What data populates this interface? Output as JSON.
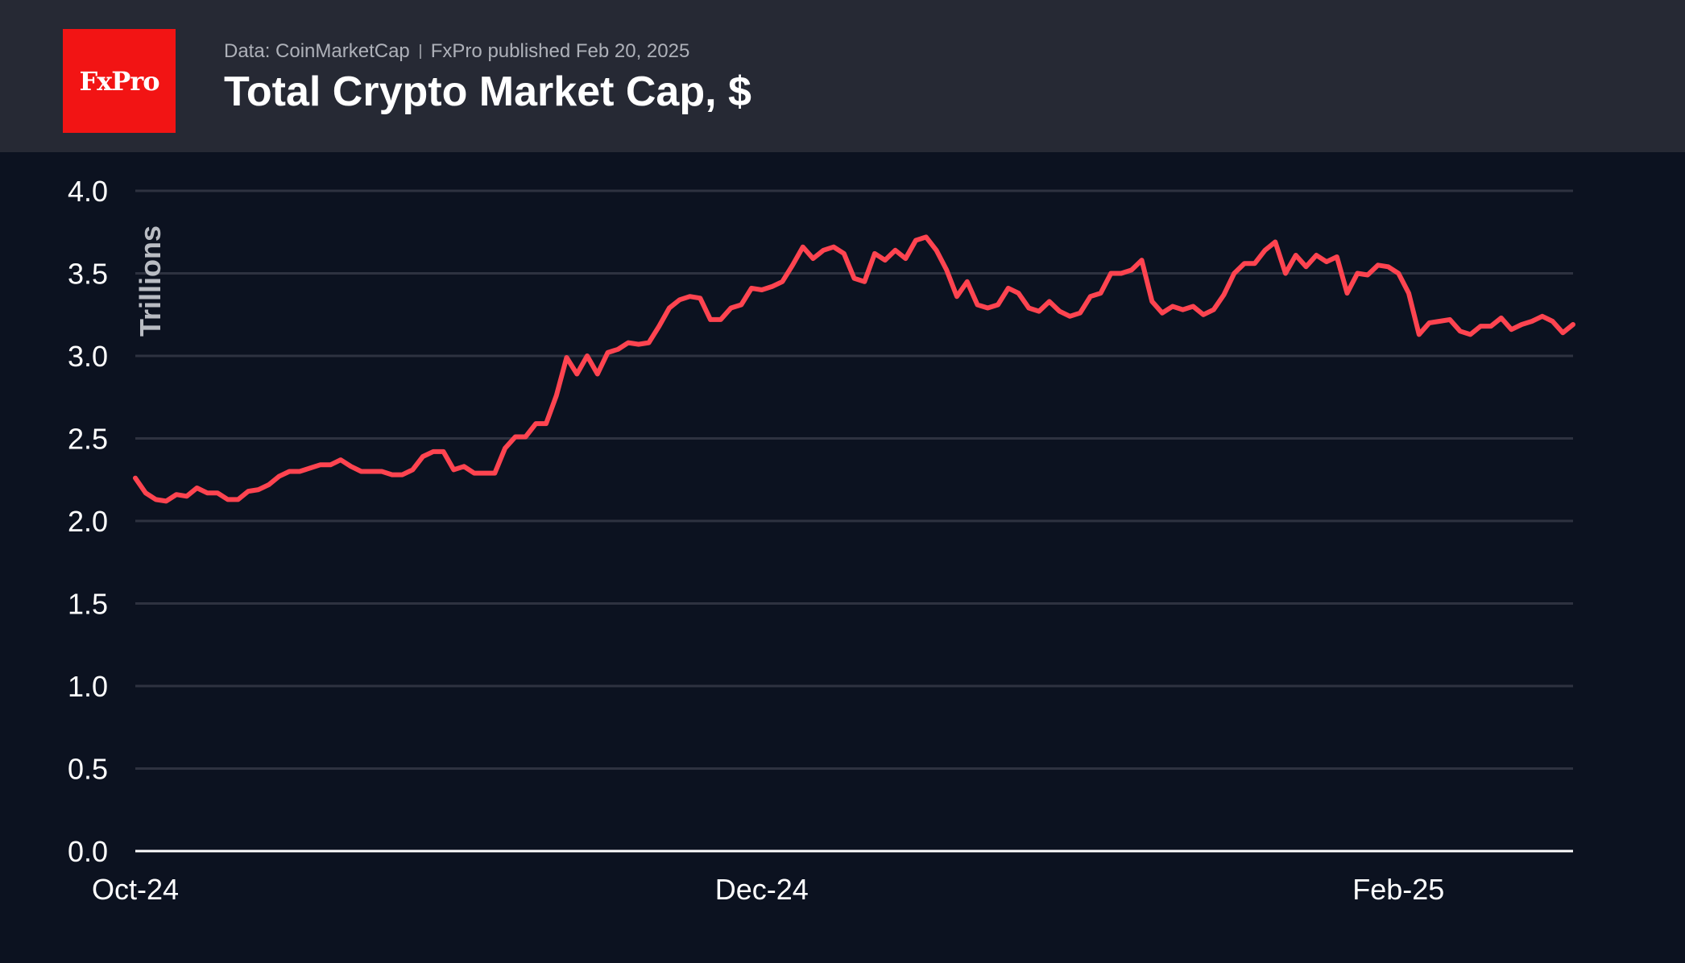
{
  "header": {
    "logo_text": "FxPro",
    "source": "Data: CoinMarketCap",
    "published": "FxPro published Feb 20, 2025",
    "title": "Total Crypto Market Cap, $"
  },
  "colors": {
    "background": "#0c1220",
    "header": "#262934",
    "logo": "#f21414",
    "line": "#ff4450",
    "grid": "#2e3240"
  },
  "chart_data": {
    "type": "line",
    "ylabel": "Trillions",
    "ylim": [
      0,
      4
    ],
    "yticks": [
      "0.0",
      "0.5",
      "1.0",
      "1.5",
      "2.0",
      "2.5",
      "3.0",
      "3.5",
      "4.0"
    ],
    "xticks": [
      {
        "label": "Oct-24",
        "date": "2024-10-01"
      },
      {
        "label": "Dec-24",
        "date": "2024-12-01"
      },
      {
        "label": "Feb-25",
        "date": "2025-02-01"
      }
    ],
    "xlim": [
      "2024-10-01",
      "2025-02-18"
    ],
    "grid": true,
    "series": [
      {
        "values": [
          [
            "2024-10-01",
            2.26
          ],
          [
            "2024-10-02",
            2.17
          ],
          [
            "2024-10-03",
            2.13
          ],
          [
            "2024-10-04",
            2.12
          ],
          [
            "2024-10-05",
            2.16
          ],
          [
            "2024-10-06",
            2.15
          ],
          [
            "2024-10-07",
            2.2
          ],
          [
            "2024-10-08",
            2.17
          ],
          [
            "2024-10-09",
            2.17
          ],
          [
            "2024-10-10",
            2.13
          ],
          [
            "2024-10-11",
            2.13
          ],
          [
            "2024-10-12",
            2.18
          ],
          [
            "2024-10-13",
            2.19
          ],
          [
            "2024-10-14",
            2.22
          ],
          [
            "2024-10-15",
            2.27
          ],
          [
            "2024-10-16",
            2.3
          ],
          [
            "2024-10-17",
            2.3
          ],
          [
            "2024-10-18",
            2.32
          ],
          [
            "2024-10-19",
            2.34
          ],
          [
            "2024-10-20",
            2.34
          ],
          [
            "2024-10-21",
            2.37
          ],
          [
            "2024-10-22",
            2.33
          ],
          [
            "2024-10-23",
            2.3
          ],
          [
            "2024-10-24",
            2.3
          ],
          [
            "2024-10-25",
            2.3
          ],
          [
            "2024-10-26",
            2.28
          ],
          [
            "2024-10-27",
            2.28
          ],
          [
            "2024-10-28",
            2.31
          ],
          [
            "2024-10-29",
            2.39
          ],
          [
            "2024-10-30",
            2.42
          ],
          [
            "2024-10-31",
            2.42
          ],
          [
            "2024-11-01",
            2.31
          ],
          [
            "2024-11-02",
            2.33
          ],
          [
            "2024-11-03",
            2.29
          ],
          [
            "2024-11-04",
            2.29
          ],
          [
            "2024-11-05",
            2.29
          ],
          [
            "2024-11-06",
            2.44
          ],
          [
            "2024-11-07",
            2.51
          ],
          [
            "2024-11-08",
            2.51
          ],
          [
            "2024-11-09",
            2.59
          ],
          [
            "2024-11-10",
            2.59
          ],
          [
            "2024-11-11",
            2.76
          ],
          [
            "2024-11-12",
            2.99
          ],
          [
            "2024-11-13",
            2.89
          ],
          [
            "2024-11-14",
            3.0
          ],
          [
            "2024-11-15",
            2.89
          ],
          [
            "2024-11-16",
            3.02
          ],
          [
            "2024-11-17",
            3.04
          ],
          [
            "2024-11-18",
            3.08
          ],
          [
            "2024-11-19",
            3.07
          ],
          [
            "2024-11-20",
            3.08
          ],
          [
            "2024-11-21",
            3.18
          ],
          [
            "2024-11-22",
            3.29
          ],
          [
            "2024-11-23",
            3.34
          ],
          [
            "2024-11-24",
            3.36
          ],
          [
            "2024-11-25",
            3.35
          ],
          [
            "2024-11-26",
            3.22
          ],
          [
            "2024-11-27",
            3.22
          ],
          [
            "2024-11-28",
            3.29
          ],
          [
            "2024-11-29",
            3.31
          ],
          [
            "2024-11-30",
            3.41
          ],
          [
            "2024-12-01",
            3.4
          ],
          [
            "2024-12-02",
            3.42
          ],
          [
            "2024-12-03",
            3.45
          ],
          [
            "2024-12-04",
            3.55
          ],
          [
            "2024-12-05",
            3.66
          ],
          [
            "2024-12-06",
            3.59
          ],
          [
            "2024-12-07",
            3.64
          ],
          [
            "2024-12-08",
            3.66
          ],
          [
            "2024-12-09",
            3.62
          ],
          [
            "2024-12-10",
            3.47
          ],
          [
            "2024-12-11",
            3.45
          ],
          [
            "2024-12-12",
            3.62
          ],
          [
            "2024-12-13",
            3.58
          ],
          [
            "2024-12-14",
            3.64
          ],
          [
            "2024-12-15",
            3.59
          ],
          [
            "2024-12-16",
            3.7
          ],
          [
            "2024-12-17",
            3.72
          ],
          [
            "2024-12-18",
            3.64
          ],
          [
            "2024-12-19",
            3.52
          ],
          [
            "2024-12-20",
            3.36
          ],
          [
            "2024-12-21",
            3.45
          ],
          [
            "2024-12-22",
            3.31
          ],
          [
            "2024-12-23",
            3.29
          ],
          [
            "2024-12-24",
            3.31
          ],
          [
            "2024-12-25",
            3.41
          ],
          [
            "2024-12-26",
            3.38
          ],
          [
            "2024-12-27",
            3.29
          ],
          [
            "2024-12-28",
            3.27
          ],
          [
            "2024-12-29",
            3.33
          ],
          [
            "2024-12-30",
            3.27
          ],
          [
            "2024-12-31",
            3.24
          ],
          [
            "2025-01-01",
            3.26
          ],
          [
            "2025-01-02",
            3.36
          ],
          [
            "2025-01-03",
            3.38
          ],
          [
            "2025-01-04",
            3.5
          ],
          [
            "2025-01-05",
            3.5
          ],
          [
            "2025-01-06",
            3.52
          ],
          [
            "2025-01-07",
            3.58
          ],
          [
            "2025-01-08",
            3.33
          ],
          [
            "2025-01-09",
            3.26
          ],
          [
            "2025-01-10",
            3.3
          ],
          [
            "2025-01-11",
            3.28
          ],
          [
            "2025-01-12",
            3.3
          ],
          [
            "2025-01-13",
            3.25
          ],
          [
            "2025-01-14",
            3.28
          ],
          [
            "2025-01-15",
            3.37
          ],
          [
            "2025-01-16",
            3.5
          ],
          [
            "2025-01-17",
            3.56
          ],
          [
            "2025-01-18",
            3.56
          ],
          [
            "2025-01-19",
            3.64
          ],
          [
            "2025-01-20",
            3.69
          ],
          [
            "2025-01-21",
            3.5
          ],
          [
            "2025-01-22",
            3.61
          ],
          [
            "2025-01-23",
            3.54
          ],
          [
            "2025-01-24",
            3.61
          ],
          [
            "2025-01-25",
            3.57
          ],
          [
            "2025-01-26",
            3.6
          ],
          [
            "2025-01-27",
            3.38
          ],
          [
            "2025-01-28",
            3.5
          ],
          [
            "2025-01-29",
            3.49
          ],
          [
            "2025-01-30",
            3.55
          ],
          [
            "2025-01-31",
            3.54
          ],
          [
            "2025-02-01",
            3.5
          ],
          [
            "2025-02-02",
            3.38
          ],
          [
            "2025-02-03",
            3.13
          ],
          [
            "2025-02-04",
            3.2
          ],
          [
            "2025-02-05",
            3.21
          ],
          [
            "2025-02-06",
            3.22
          ],
          [
            "2025-02-07",
            3.15
          ],
          [
            "2025-02-08",
            3.13
          ],
          [
            "2025-02-09",
            3.18
          ],
          [
            "2025-02-10",
            3.18
          ],
          [
            "2025-02-11",
            3.23
          ],
          [
            "2025-02-12",
            3.16
          ],
          [
            "2025-02-13",
            3.19
          ],
          [
            "2025-02-14",
            3.21
          ],
          [
            "2025-02-15",
            3.24
          ],
          [
            "2025-02-16",
            3.21
          ],
          [
            "2025-02-17",
            3.14
          ],
          [
            "2025-02-18",
            3.19
          ]
        ]
      }
    ]
  }
}
